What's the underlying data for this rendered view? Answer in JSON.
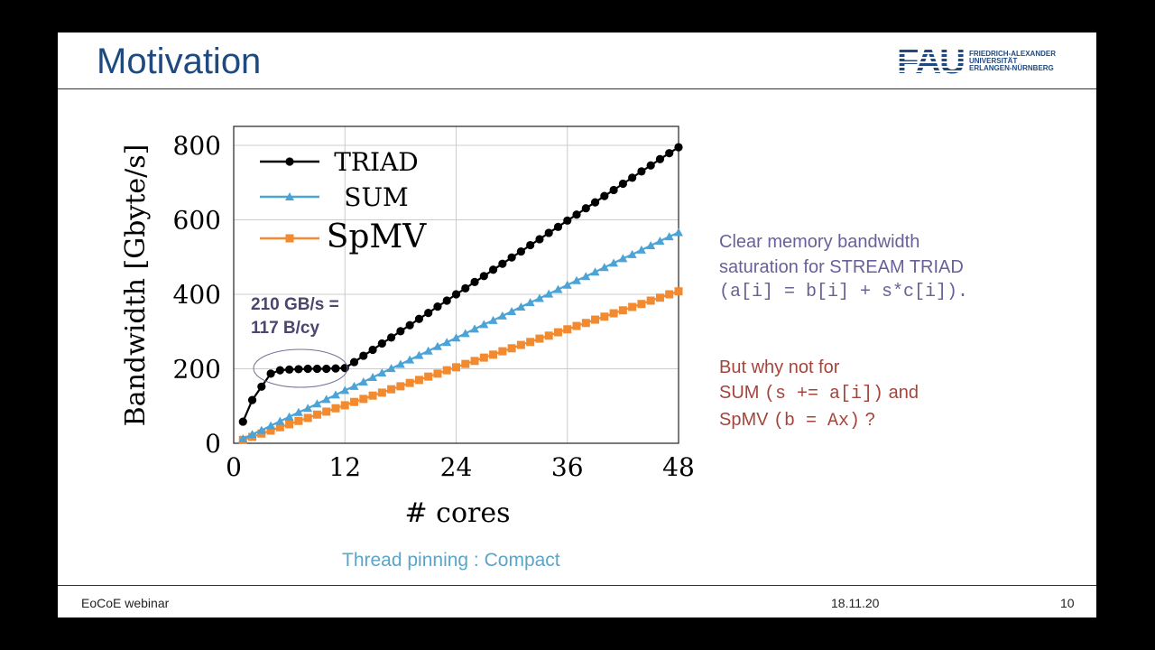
{
  "slide": {
    "title": "Motivation",
    "logo": {
      "mark": "FAU",
      "lines": [
        "FRIEDRICH-ALEXANDER",
        "UNIVERSITÄT",
        "ERLANGEN-NÜRNBERG"
      ]
    },
    "footer": {
      "left": "EoCoE webinar",
      "date": "18.11.20",
      "page": "10"
    },
    "caption": "Thread pinning : Compact",
    "annotation": [
      "210 GB/s =",
      "117 B/cy"
    ],
    "right_text": {
      "p1": {
        "line1": "Clear memory bandwidth",
        "line2": "saturation for STREAM TRIAD",
        "line3": "(a[i] = b[i] + s*c[i]).",
        "color": "#6b5f9a"
      },
      "p2": {
        "line1": "But why not for",
        "l2a": "SUM ",
        "l2b": "(s += a[i])",
        "l2c": " and",
        "l3a": "SpMV ",
        "l3b": "(b = Ax)",
        "l3c": " ?",
        "color": "#a4453c"
      }
    }
  },
  "chart_data": {
    "type": "line",
    "xlabel": "# cores",
    "ylabel": "Bandwidth [Gbyte/s]",
    "xlim": [
      0,
      48
    ],
    "ylim": [
      0,
      800
    ],
    "xticks": [
      "0",
      "12",
      "24",
      "36",
      "48"
    ],
    "yticks": [
      "0",
      "200",
      "400",
      "600",
      "800"
    ],
    "grid": true,
    "legend": "top-left",
    "x": [
      1,
      2,
      3,
      4,
      5,
      6,
      7,
      8,
      9,
      10,
      11,
      12,
      13,
      14,
      15,
      16,
      17,
      18,
      19,
      20,
      21,
      22,
      23,
      24,
      25,
      26,
      27,
      28,
      29,
      30,
      31,
      32,
      33,
      34,
      35,
      36,
      37,
      38,
      39,
      40,
      41,
      42,
      43,
      44,
      45,
      46,
      47,
      48
    ],
    "series": [
      {
        "name": "TRIAD",
        "color": "#000000",
        "marker": "circle",
        "values": [
          58,
          116,
          152,
          187,
          196,
          198,
          199,
          200,
          200,
          200,
          201,
          202,
          218,
          235,
          251,
          268,
          284,
          301,
          317,
          334,
          350,
          367,
          383,
          400,
          416,
          433,
          449,
          466,
          482,
          499,
          515,
          532,
          548,
          565,
          581,
          598,
          614,
          631,
          647,
          664,
          680,
          697,
          713,
          730,
          746,
          763,
          779,
          795
        ]
      },
      {
        "name": "SUM",
        "color": "#4ba3d6",
        "marker": "triangle",
        "values": [
          12,
          24,
          35,
          47,
          59,
          71,
          83,
          94,
          106,
          118,
          130,
          142,
          153,
          165,
          177,
          189,
          201,
          212,
          224,
          236,
          248,
          260,
          271,
          283,
          295,
          307,
          319,
          330,
          342,
          354,
          366,
          378,
          389,
          401,
          413,
          425,
          437,
          448,
          460,
          472,
          484,
          496,
          507,
          519,
          531,
          543,
          555,
          566
        ]
      },
      {
        "name": "SpMV",
        "color": "#f28a30",
        "marker": "square",
        "values": [
          9,
          17,
          26,
          34,
          43,
          51,
          60,
          68,
          77,
          85,
          94,
          102,
          111,
          119,
          128,
          136,
          145,
          153,
          162,
          170,
          179,
          187,
          196,
          204,
          213,
          221,
          230,
          238,
          247,
          255,
          264,
          272,
          281,
          289,
          298,
          306,
          315,
          323,
          332,
          340,
          349,
          357,
          366,
          374,
          383,
          391,
          400,
          408
        ]
      }
    ]
  }
}
